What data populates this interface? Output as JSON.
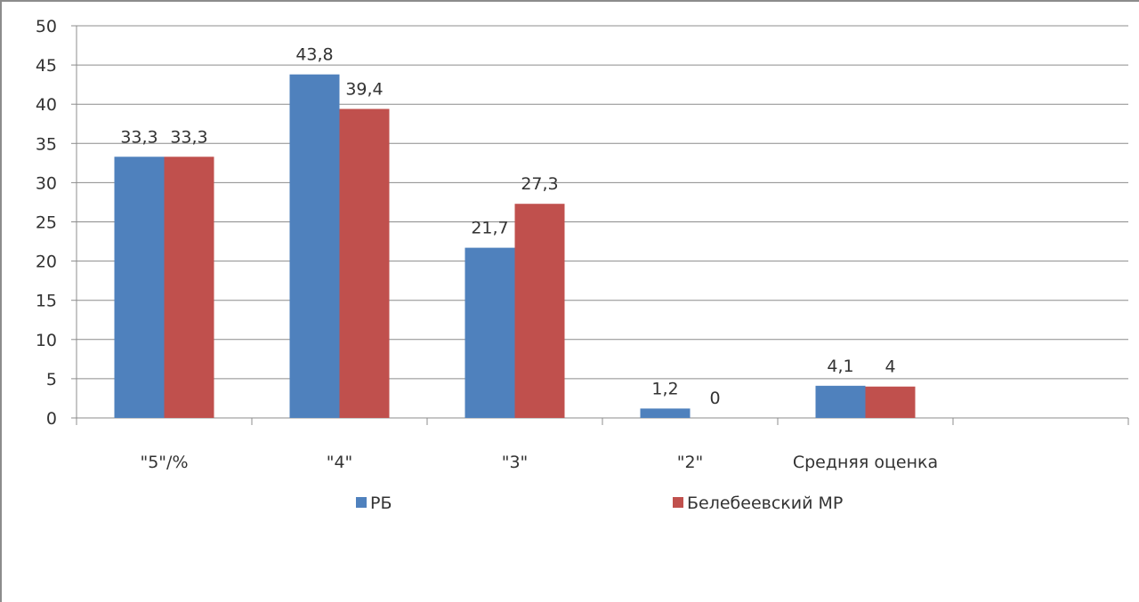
{
  "chart_data": {
    "type": "bar",
    "categories": [
      "\"5\"/%",
      "\"4\"",
      "\"3\"",
      "\"2\"",
      "Средняя оценка"
    ],
    "series": [
      {
        "name": "РБ",
        "color": "#4f81bd",
        "values": [
          33.3,
          43.8,
          21.7,
          1.2,
          4.1
        ],
        "labels": [
          "33,3",
          "43,8",
          "21,7",
          "1,2",
          "4,1"
        ]
      },
      {
        "name": "Белебеевский МР",
        "color": "#c0504d",
        "values": [
          33.3,
          39.4,
          27.3,
          0,
          4
        ],
        "labels": [
          "33,3",
          "39,4",
          "27,3",
          "0",
          "4"
        ]
      }
    ],
    "y_ticks": [
      "0",
      "5",
      "10",
      "15",
      "20",
      "25",
      "30",
      "35",
      "40",
      "45",
      "50"
    ],
    "ylim": [
      0,
      50
    ],
    "grid": true,
    "legend_position": "bottom"
  }
}
